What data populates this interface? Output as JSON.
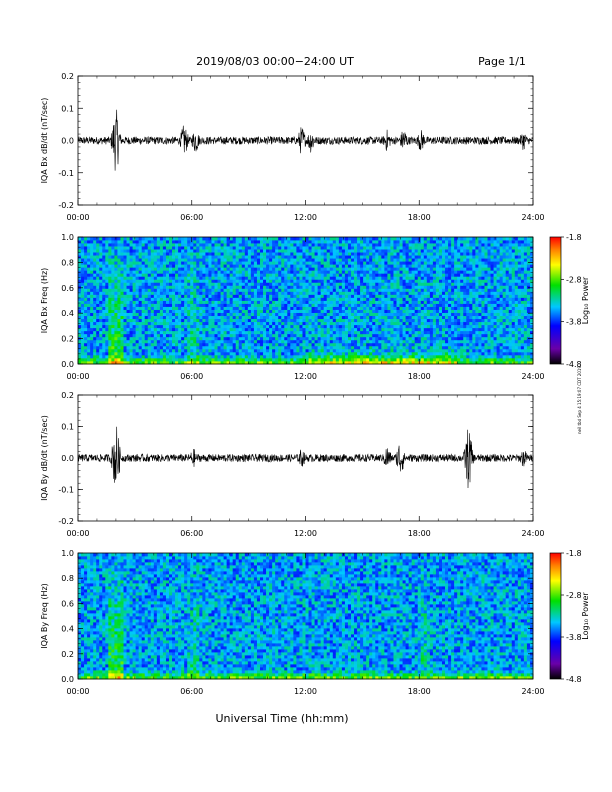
{
  "header": {
    "title": "2019/08/03  00:00−24:00 UT",
    "page": "Page 1/1"
  },
  "footer": {
    "xlabel": "Universal Time (hh:mm)",
    "side_note": "neil tbd Sep 4 15:19:07 CDT 2019"
  },
  "colorbar": {
    "ticks": [
      "-1.8",
      "-2.8",
      "-3.8",
      "-4.8"
    ],
    "label": "Log₁₀ Power"
  },
  "chart_data": [
    {
      "type": "line",
      "ylabel": "IQA Bx dB/dt (nT/sec)",
      "ylim": [
        -0.2,
        0.2
      ],
      "yticks": [
        "0.2",
        "0.1",
        "0.0",
        "-0.1",
        "-0.2"
      ],
      "xticks": [
        "00:00",
        "06:00",
        "12:00",
        "18:00",
        "24:00"
      ],
      "xlim_hours": [
        0,
        24
      ],
      "baseline": 0.0,
      "noise_amp": 0.012,
      "events": [
        {
          "hour": 2.0,
          "amp": 0.1
        },
        {
          "hour": 5.6,
          "amp": 0.05
        },
        {
          "hour": 6.2,
          "amp": 0.04
        },
        {
          "hour": 11.8,
          "amp": 0.045
        },
        {
          "hour": 12.3,
          "amp": 0.04
        },
        {
          "hour": 16.3,
          "amp": 0.035
        },
        {
          "hour": 17.2,
          "amp": 0.04
        },
        {
          "hour": 18.1,
          "amp": 0.035
        },
        {
          "hour": 23.5,
          "amp": 0.03
        }
      ]
    },
    {
      "type": "heatmap",
      "ylabel": "IQA Bx Freq (Hz)",
      "ylim": [
        0.0,
        1.0
      ],
      "yticks": [
        "1.0",
        "0.8",
        "0.6",
        "0.4",
        "0.2",
        "0.0"
      ],
      "xticks": [
        "00:00",
        "06:00",
        "12:00",
        "18:00",
        "24:00"
      ],
      "zlim": [
        -4.8,
        -1.8
      ],
      "zlabel": "Log₁₀ Power"
    },
    {
      "type": "line",
      "ylabel": "IQA By dB/dt (nT/sec)",
      "ylim": [
        -0.2,
        0.2
      ],
      "yticks": [
        "0.2",
        "0.1",
        "0.0",
        "-0.1",
        "-0.2"
      ],
      "xticks": [
        "00:00",
        "06:00",
        "12:00",
        "18:00",
        "24:00"
      ],
      "xlim_hours": [
        0,
        24
      ],
      "baseline": 0.0,
      "noise_amp": 0.012,
      "events": [
        {
          "hour": 2.0,
          "amp": 0.11
        },
        {
          "hour": 6.1,
          "amp": 0.03
        },
        {
          "hour": 11.8,
          "amp": 0.03
        },
        {
          "hour": 16.3,
          "amp": 0.04
        },
        {
          "hour": 17.0,
          "amp": 0.06
        },
        {
          "hour": 20.6,
          "amp": 0.1
        },
        {
          "hour": 23.5,
          "amp": 0.03
        }
      ]
    },
    {
      "type": "heatmap",
      "ylabel": "IQA By Freq (Hz)",
      "ylim": [
        0.0,
        1.0
      ],
      "yticks": [
        "1.0",
        "0.8",
        "0.6",
        "0.4",
        "0.2",
        "0.0"
      ],
      "xticks": [
        "00:00",
        "06:00",
        "12:00",
        "18:00",
        "24:00"
      ],
      "zlim": [
        -4.8,
        -1.8
      ],
      "zlabel": "Log₁₀ Power"
    }
  ]
}
